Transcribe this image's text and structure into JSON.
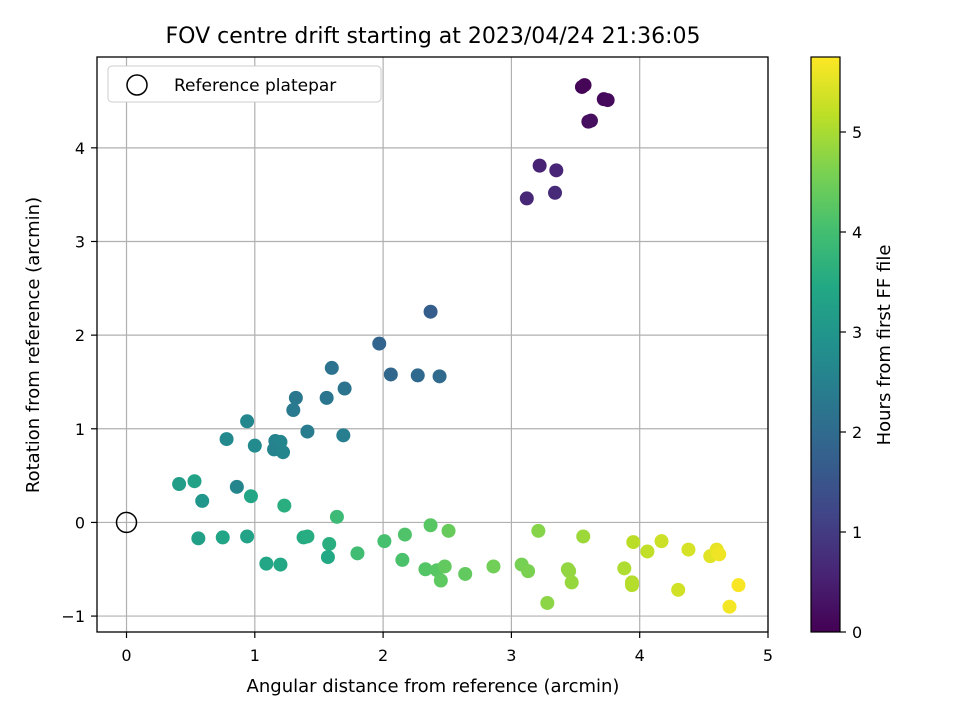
{
  "chart_data": {
    "type": "scatter",
    "title": "FOV centre drift starting at 2023/04/24 21:36:05",
    "xlabel": "Angular distance from reference (arcmin)",
    "ylabel": "Rotation from reference (arcmin)",
    "colorbar_label": "Hours from first FF file",
    "xlim": [
      -0.23,
      5.0
    ],
    "ylim": [
      -1.17,
      4.97
    ],
    "xticks": [
      0,
      1,
      2,
      3,
      4,
      5
    ],
    "yticks": [
      -1,
      0,
      1,
      2,
      3,
      4
    ],
    "colorbar_range": [
      0,
      5.75
    ],
    "colorbar_ticks": [
      0,
      1,
      2,
      3,
      4,
      5
    ],
    "colormap": "viridis",
    "grid": true,
    "legend": {
      "position": "top-left",
      "label": "Reference platepar"
    },
    "reference_point": {
      "x": 0,
      "y": 0
    },
    "points": [
      {
        "x": 3.55,
        "y": 4.65,
        "h": 0.05
      },
      {
        "x": 3.57,
        "y": 4.67,
        "h": 0.08
      },
      {
        "x": 3.72,
        "y": 4.52,
        "h": 0.12
      },
      {
        "x": 3.75,
        "y": 4.51,
        "h": 0.15
      },
      {
        "x": 3.6,
        "y": 4.28,
        "h": 0.2
      },
      {
        "x": 3.62,
        "y": 4.29,
        "h": 0.22
      },
      {
        "x": 3.22,
        "y": 3.81,
        "h": 0.55
      },
      {
        "x": 3.35,
        "y": 3.76,
        "h": 0.6
      },
      {
        "x": 3.12,
        "y": 3.46,
        "h": 0.65
      },
      {
        "x": 3.34,
        "y": 3.52,
        "h": 0.7
      },
      {
        "x": 2.37,
        "y": 2.25,
        "h": 1.7
      },
      {
        "x": 1.97,
        "y": 1.91,
        "h": 1.85
      },
      {
        "x": 2.06,
        "y": 1.58,
        "h": 1.9
      },
      {
        "x": 2.27,
        "y": 1.57,
        "h": 1.95
      },
      {
        "x": 2.44,
        "y": 1.56,
        "h": 2.0
      },
      {
        "x": 1.6,
        "y": 1.65,
        "h": 2.15
      },
      {
        "x": 1.7,
        "y": 1.43,
        "h": 2.2
      },
      {
        "x": 1.56,
        "y": 1.33,
        "h": 2.25
      },
      {
        "x": 1.32,
        "y": 1.33,
        "h": 2.3
      },
      {
        "x": 1.3,
        "y": 1.2,
        "h": 2.35
      },
      {
        "x": 1.41,
        "y": 0.97,
        "h": 2.4
      },
      {
        "x": 1.69,
        "y": 0.93,
        "h": 2.45
      },
      {
        "x": 0.94,
        "y": 1.08,
        "h": 2.65
      },
      {
        "x": 0.78,
        "y": 0.89,
        "h": 2.7
      },
      {
        "x": 1.0,
        "y": 0.82,
        "h": 2.75
      },
      {
        "x": 1.16,
        "y": 0.87,
        "h": 2.55
      },
      {
        "x": 1.2,
        "y": 0.86,
        "h": 2.6
      },
      {
        "x": 1.15,
        "y": 0.78,
        "h": 2.55
      },
      {
        "x": 1.22,
        "y": 0.75,
        "h": 2.6
      },
      {
        "x": 0.86,
        "y": 0.38,
        "h": 2.6
      },
      {
        "x": 0.41,
        "y": 0.41,
        "h": 3.2
      },
      {
        "x": 0.53,
        "y": 0.44,
        "h": 3.3
      },
      {
        "x": 0.59,
        "y": 0.23,
        "h": 3.0
      },
      {
        "x": 0.97,
        "y": 0.28,
        "h": 3.4
      },
      {
        "x": 1.23,
        "y": 0.18,
        "h": 3.6
      },
      {
        "x": 0.56,
        "y": -0.17,
        "h": 3.25
      },
      {
        "x": 0.75,
        "y": -0.16,
        "h": 3.35
      },
      {
        "x": 0.94,
        "y": -0.15,
        "h": 3.3
      },
      {
        "x": 1.09,
        "y": -0.44,
        "h": 3.4
      },
      {
        "x": 1.2,
        "y": -0.45,
        "h": 3.45
      },
      {
        "x": 1.38,
        "y": -0.16,
        "h": 3.5
      },
      {
        "x": 1.41,
        "y": -0.15,
        "h": 3.55
      },
      {
        "x": 1.58,
        "y": -0.23,
        "h": 3.6
      },
      {
        "x": 1.57,
        "y": -0.37,
        "h": 3.45
      },
      {
        "x": 1.64,
        "y": 0.06,
        "h": 3.9
      },
      {
        "x": 1.8,
        "y": -0.33,
        "h": 3.95
      },
      {
        "x": 2.01,
        "y": -0.2,
        "h": 4.05
      },
      {
        "x": 2.15,
        "y": -0.4,
        "h": 4.1
      },
      {
        "x": 2.17,
        "y": -0.13,
        "h": 4.15
      },
      {
        "x": 2.33,
        "y": -0.5,
        "h": 4.2
      },
      {
        "x": 2.37,
        "y": -0.03,
        "h": 4.25
      },
      {
        "x": 2.42,
        "y": -0.51,
        "h": 4.25
      },
      {
        "x": 2.45,
        "y": -0.62,
        "h": 4.3
      },
      {
        "x": 2.48,
        "y": -0.47,
        "h": 4.35
      },
      {
        "x": 2.51,
        "y": -0.09,
        "h": 4.4
      },
      {
        "x": 2.64,
        "y": -0.55,
        "h": 4.35
      },
      {
        "x": 2.86,
        "y": -0.47,
        "h": 4.5
      },
      {
        "x": 3.08,
        "y": -0.45,
        "h": 4.55
      },
      {
        "x": 3.13,
        "y": -0.52,
        "h": 4.6
      },
      {
        "x": 3.21,
        "y": -0.09,
        "h": 4.7
      },
      {
        "x": 3.28,
        "y": -0.86,
        "h": 4.75
      },
      {
        "x": 3.44,
        "y": -0.5,
        "h": 4.8
      },
      {
        "x": 3.45,
        "y": -0.52,
        "h": 4.82
      },
      {
        "x": 3.47,
        "y": -0.64,
        "h": 4.85
      },
      {
        "x": 3.56,
        "y": -0.15,
        "h": 4.9
      },
      {
        "x": 3.88,
        "y": -0.49,
        "h": 5.05
      },
      {
        "x": 3.94,
        "y": -0.64,
        "h": 5.1
      },
      {
        "x": 3.94,
        "y": -0.67,
        "h": 5.1
      },
      {
        "x": 3.95,
        "y": -0.21,
        "h": 5.15
      },
      {
        "x": 4.06,
        "y": -0.31,
        "h": 5.2
      },
      {
        "x": 4.17,
        "y": -0.2,
        "h": 5.3
      },
      {
        "x": 4.3,
        "y": -0.72,
        "h": 5.35
      },
      {
        "x": 4.38,
        "y": -0.29,
        "h": 5.4
      },
      {
        "x": 4.55,
        "y": -0.36,
        "h": 5.5
      },
      {
        "x": 4.6,
        "y": -0.29,
        "h": 5.55
      },
      {
        "x": 4.61,
        "y": -0.33,
        "h": 5.6
      },
      {
        "x": 4.62,
        "y": -0.34,
        "h": 5.62
      },
      {
        "x": 4.7,
        "y": -0.9,
        "h": 5.65
      },
      {
        "x": 4.77,
        "y": -0.67,
        "h": 5.7
      }
    ]
  }
}
